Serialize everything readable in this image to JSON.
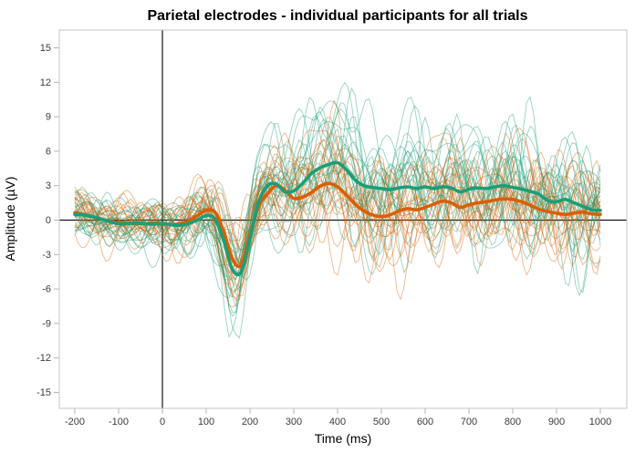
{
  "chart_data": {
    "type": "line",
    "title": "Parietal electrodes - individual participants for all trials",
    "xlabel": "Time (ms)",
    "ylabel": "Amplitude (µV)",
    "xlim": [
      -200,
      1000
    ],
    "ylim": [
      -16.5,
      16.5
    ],
    "x_ticks": [
      -200,
      -100,
      0,
      100,
      200,
      300,
      400,
      500,
      600,
      700,
      800,
      900,
      1000
    ],
    "y_ticks": [
      -15,
      -12,
      -9,
      -6,
      -3,
      0,
      3,
      6,
      9,
      12,
      15
    ],
    "grid": false,
    "legend_position": "none",
    "reference_lines": {
      "vline_x": 0,
      "hline_y": 0,
      "color": "#141414"
    },
    "x_start_ms": -200,
    "x_step_ms": 20,
    "series": [
      {
        "name": "group-mean-teal",
        "color": "#1B9E77",
        "linewidth": 3.6,
        "values": [
          0.5,
          0.45,
          0.3,
          0.1,
          -0.15,
          -0.3,
          -0.3,
          -0.25,
          -0.3,
          -0.35,
          -0.3,
          -0.4,
          -0.45,
          -0.3,
          0.0,
          0.4,
          0.1,
          -1.8,
          -4.3,
          -4.5,
          -1.6,
          1.6,
          3.0,
          3.15,
          2.45,
          2.55,
          3.2,
          4.05,
          4.55,
          4.85,
          5.0,
          4.4,
          3.5,
          3.0,
          2.85,
          2.75,
          2.65,
          2.8,
          2.9,
          2.75,
          2.9,
          2.75,
          2.9,
          2.8,
          2.45,
          2.7,
          2.8,
          2.75,
          2.9,
          3.0,
          2.85,
          2.7,
          2.5,
          2.25,
          1.7,
          1.6,
          1.8,
          1.5,
          1.2,
          0.9,
          0.85
        ]
      },
      {
        "name": "group-mean-orange",
        "color": "#D95F02",
        "linewidth": 3.6,
        "values": [
          0.65,
          0.5,
          0.3,
          0.1,
          -0.1,
          -0.2,
          -0.25,
          -0.3,
          -0.3,
          -0.25,
          -0.3,
          -0.4,
          -0.3,
          -0.1,
          0.4,
          0.85,
          0.7,
          -1.0,
          -3.4,
          -3.9,
          -1.3,
          1.2,
          2.3,
          3.0,
          2.6,
          1.9,
          2.0,
          2.4,
          2.95,
          3.2,
          2.9,
          2.2,
          1.4,
          0.8,
          0.45,
          0.3,
          0.45,
          0.8,
          1.0,
          0.9,
          1.1,
          1.4,
          1.65,
          1.5,
          1.1,
          1.35,
          1.5,
          1.6,
          1.75,
          1.85,
          1.8,
          1.6,
          1.3,
          0.95,
          0.75,
          0.6,
          0.5,
          0.6,
          0.7,
          0.55,
          0.5
        ]
      }
    ],
    "individual_traces": {
      "description": "Thin semi-transparent single-participant ERP traces scattered around each group mean; individual values not legible in source, regenerated procedurally around the mean series.",
      "n_per_group": 22,
      "colors": [
        "#1B9E77",
        "#D95F02"
      ],
      "opacity": 0.45,
      "linewidth": 0.9,
      "seed": 11,
      "gain_range": [
        0.35,
        1.9
      ],
      "latency_jitter_ms": 30,
      "baseline_spread_uv": 3.5,
      "max_spread_uv": 8
    },
    "axis_style": {
      "tick_color": "#b3b3b3",
      "tick_label_color": "#3c3c3c",
      "panel_border_color": "#c6c6c6",
      "panel_background": "#ffffff"
    }
  }
}
